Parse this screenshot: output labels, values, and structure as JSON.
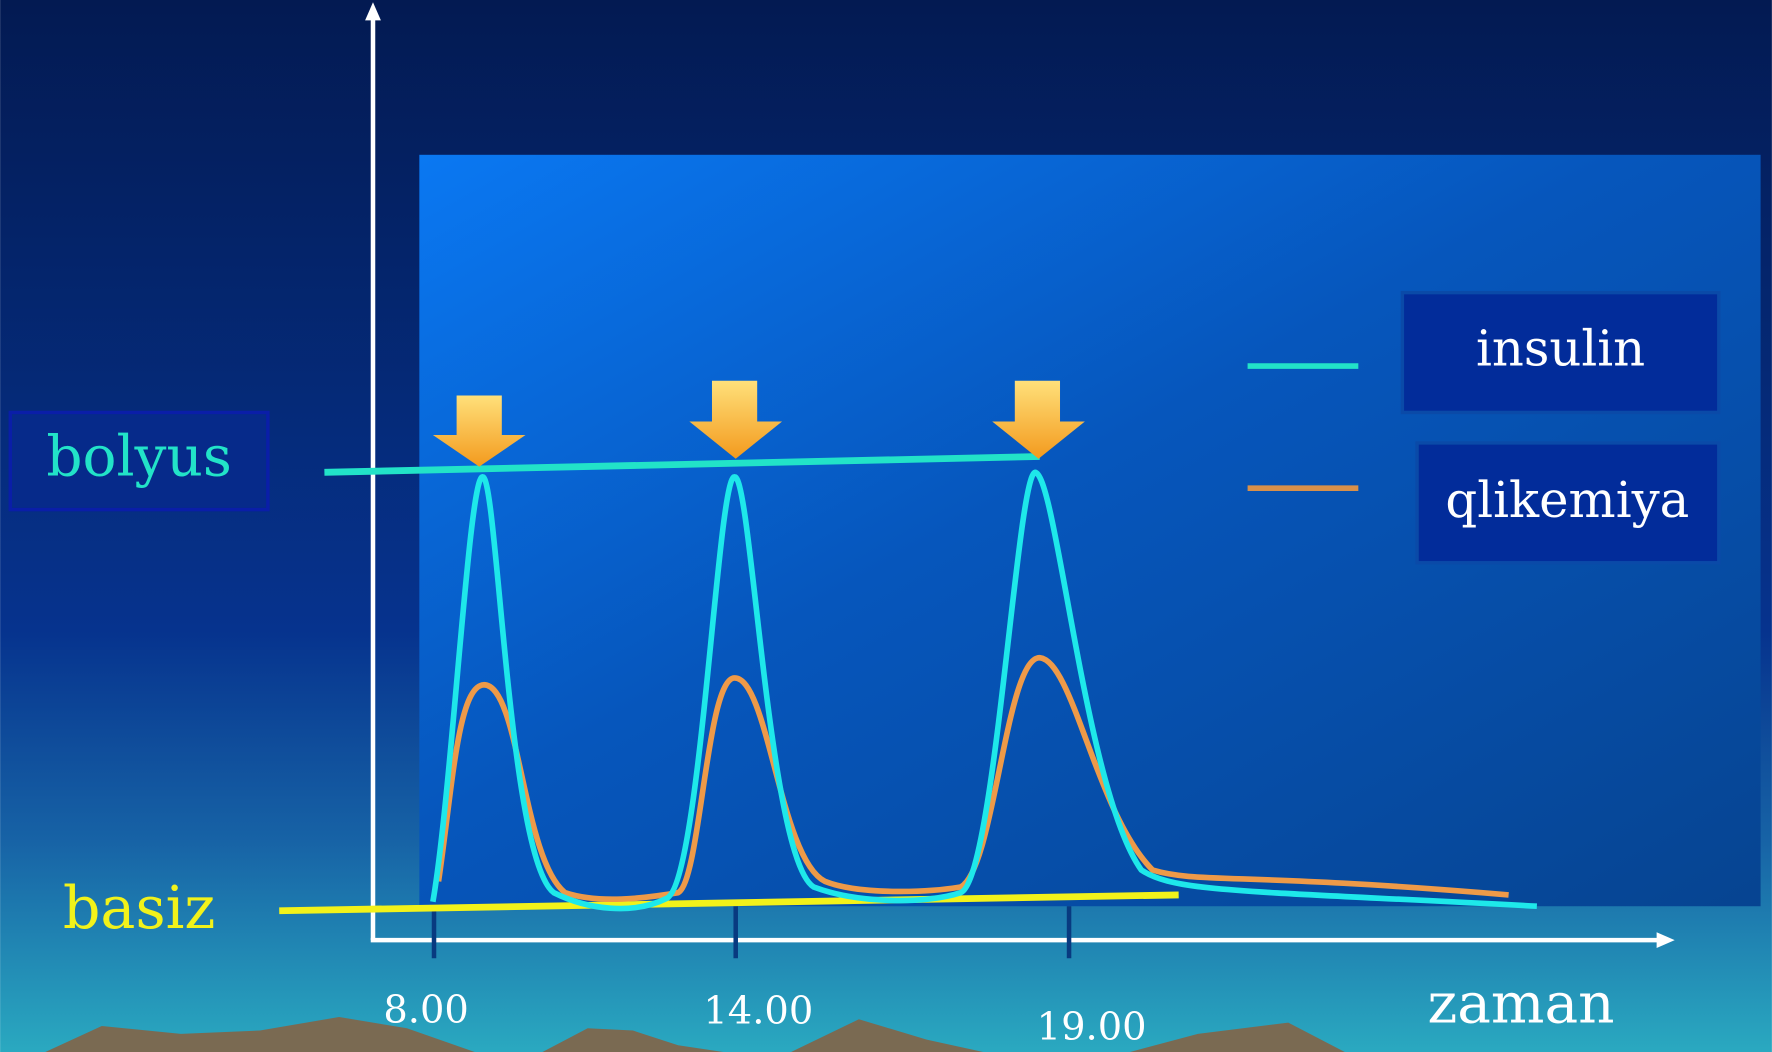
{
  "labels": {
    "bolus": "bolyus",
    "basal": "basiz",
    "x_axis": "zaman"
  },
  "legend": {
    "items": [
      {
        "label": "insulin"
      },
      {
        "label": "qlikemiya"
      }
    ]
  },
  "times": [
    "8.00",
    "14.00",
    "19.00"
  ]
}
